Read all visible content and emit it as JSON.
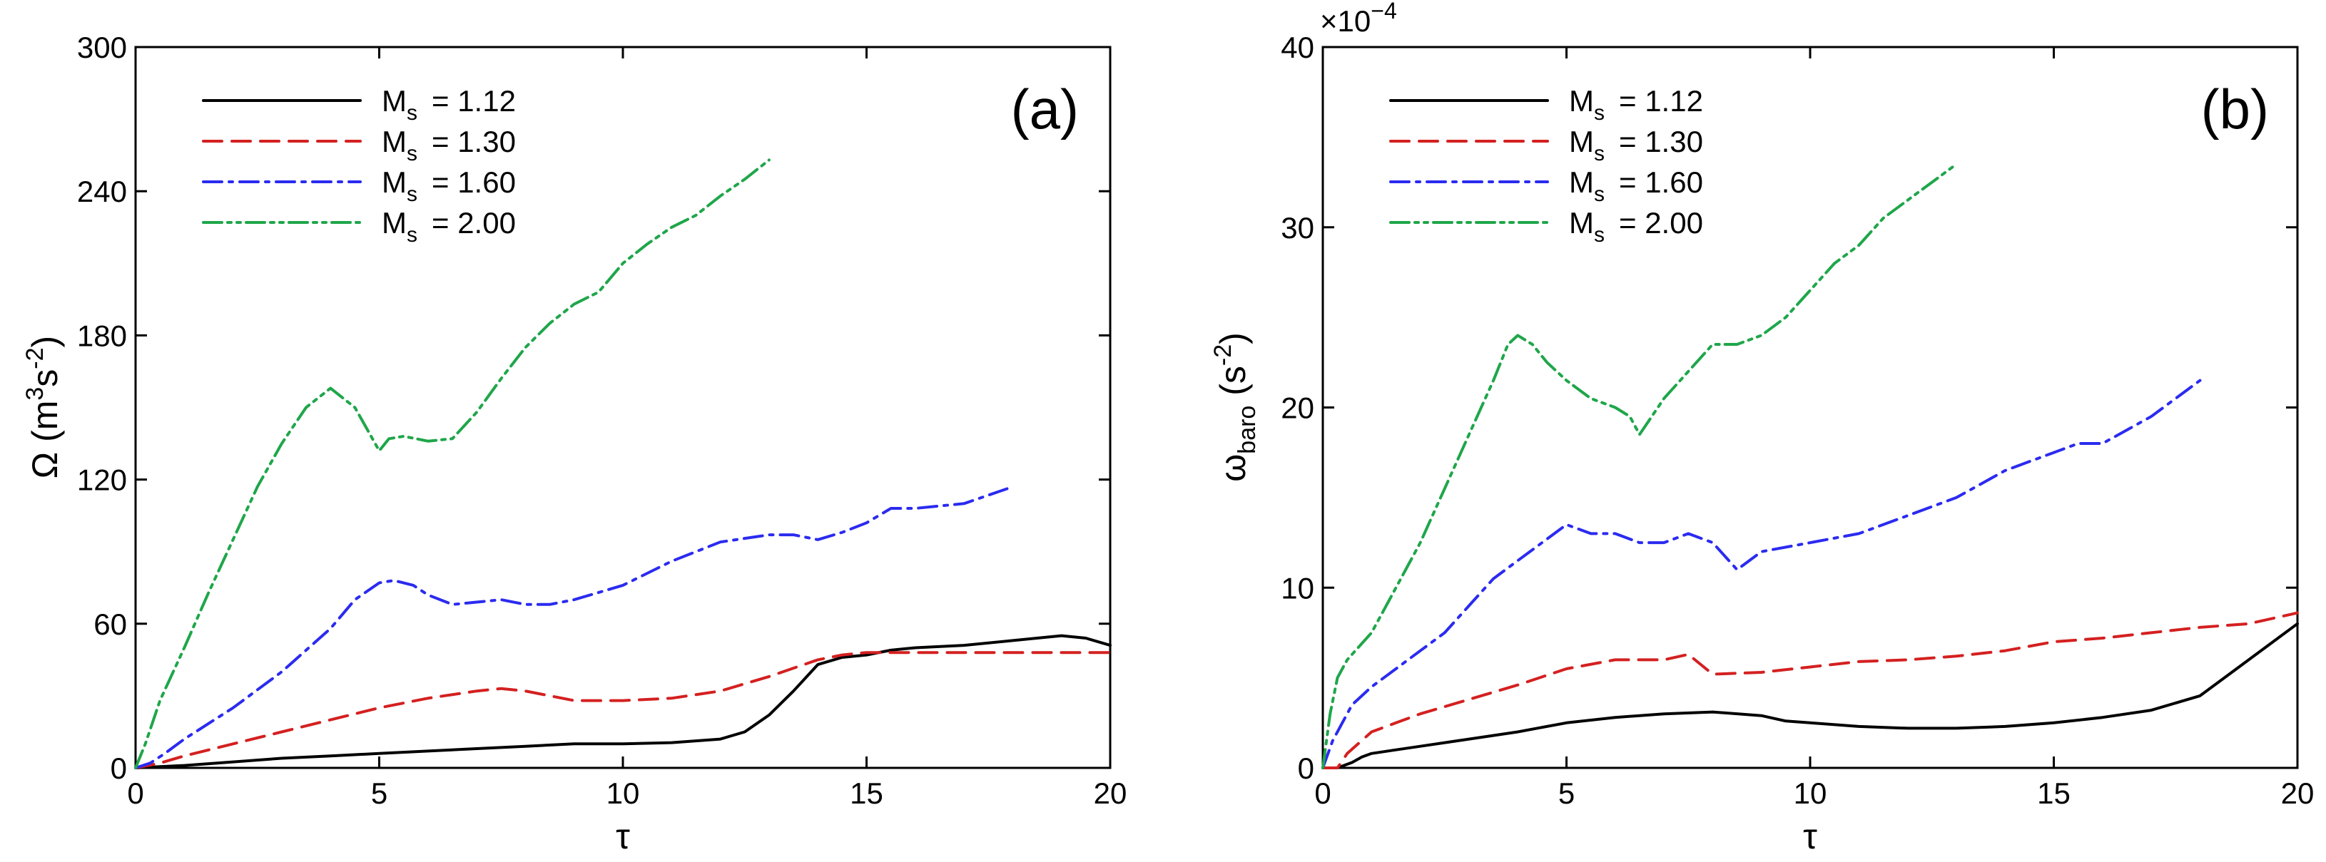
{
  "chart_data": [
    {
      "type": "line",
      "panel_label": "(a)",
      "xlabel": "τ",
      "ylabel": "Ω (m³s⁻²)",
      "ylabel_parts": {
        "main": "Ω (m",
        "sup1": "3",
        "mid": "s",
        "sup2": "-2",
        "end": ")"
      },
      "xlim": [
        0,
        20
      ],
      "ylim": [
        0,
        300
      ],
      "xticks": [
        0,
        5,
        10,
        15,
        20
      ],
      "yticks": [
        0,
        60,
        120,
        180,
        240,
        300
      ],
      "legend_position": "top-left",
      "series": [
        {
          "name": "Ms = 1.12",
          "label_main": "M",
          "label_sub": "s",
          "label_value": "= 1.12",
          "color": "#000000",
          "style": "solid",
          "x": [
            0,
            0.5,
            1,
            2,
            3,
            4,
            5,
            6,
            7,
            8,
            9,
            10,
            11,
            12,
            12.5,
            13,
            13.5,
            14,
            14.5,
            15,
            15.5,
            16,
            17,
            18,
            18.5,
            19,
            19.5,
            20
          ],
          "y": [
            0,
            0.5,
            1,
            2.5,
            4,
            5,
            6,
            7,
            8,
            9,
            10,
            10,
            10.5,
            12,
            15,
            22,
            32,
            43,
            46,
            47,
            49,
            50,
            51,
            53,
            54,
            55,
            54,
            51
          ]
        },
        {
          "name": "Ms = 1.30",
          "label_main": "M",
          "label_sub": "s",
          "label_value": "= 1.30",
          "color": "#d42020",
          "style": "dashed",
          "x": [
            0,
            0.5,
            1,
            2,
            3,
            4,
            5,
            6,
            7,
            7.5,
            8,
            9,
            10,
            11,
            12,
            13,
            14,
            14.5,
            15,
            16,
            17,
            18,
            19,
            20
          ],
          "y": [
            0,
            2,
            5,
            10,
            15,
            20,
            25,
            29,
            32,
            33,
            32,
            28,
            28,
            29,
            32,
            38,
            45,
            47,
            48,
            48,
            48,
            48,
            48,
            48
          ]
        },
        {
          "name": "Ms = 1.60",
          "label_main": "M",
          "label_sub": "s",
          "label_value": "= 1.60",
          "color": "#2b2bf0",
          "style": "dashdot",
          "x": [
            0,
            0.3,
            0.6,
            1,
            2,
            3,
            4,
            4.5,
            5,
            5.3,
            5.7,
            6,
            6.5,
            7,
            7.5,
            8,
            8.5,
            9,
            10,
            11,
            12,
            13,
            13.5,
            14,
            14.5,
            15,
            15.5,
            16,
            17,
            18
          ],
          "y": [
            0,
            2,
            6,
            12,
            25,
            40,
            58,
            70,
            77,
            78,
            76,
            72,
            68,
            69,
            70,
            68,
            68,
            70,
            76,
            86,
            94,
            97,
            97,
            95,
            98,
            102,
            108,
            108,
            110,
            117
          ]
        },
        {
          "name": "Ms = 2.00",
          "label_main": "M",
          "label_sub": "s",
          "label_value": "= 2.00",
          "color": "#1fa64a",
          "style": "dashdotdot",
          "x": [
            0,
            0.2,
            0.5,
            1,
            1.5,
            2,
            2.5,
            3,
            3.5,
            4,
            4.5,
            5,
            5.2,
            5.5,
            6,
            6.5,
            7,
            7.5,
            8,
            8.5,
            9,
            9.5,
            10,
            10.5,
            11,
            11.5,
            12,
            12.5,
            13
          ],
          "y": [
            0,
            10,
            28,
            50,
            73,
            95,
            117,
            135,
            150,
            158,
            150,
            132,
            137,
            138,
            136,
            137,
            148,
            162,
            175,
            185,
            193,
            198,
            210,
            218,
            225,
            230,
            238,
            245,
            253
          ]
        }
      ]
    },
    {
      "type": "line",
      "panel_label": "(b)",
      "xlabel": "τ",
      "ylabel": "ωbaro (s⁻²)",
      "ylabel_parts": {
        "main": "ω",
        "sub": "baro",
        "mid": " (s",
        "sup": "-2",
        "end": ")"
      },
      "y_multiplier": "×10⁻⁴",
      "y_multiplier_parts": {
        "base": "×10",
        "exp": "−4"
      },
      "xlim": [
        0,
        20
      ],
      "ylim": [
        0,
        40
      ],
      "xticks": [
        0,
        5,
        10,
        15,
        20
      ],
      "yticks": [
        0,
        10,
        20,
        30,
        40
      ],
      "legend_position": "top-left",
      "series": [
        {
          "name": "Ms = 1.12",
          "label_main": "M",
          "label_sub": "s",
          "label_value": "= 1.12",
          "color": "#000000",
          "style": "solid",
          "x": [
            0,
            0.3,
            0.6,
            0.8,
            1,
            1.5,
            2,
            3,
            4,
            5,
            6,
            7,
            8,
            9,
            9.5,
            10,
            11,
            12,
            13,
            14,
            15,
            16,
            17,
            18,
            18.5,
            19,
            19.5,
            20
          ],
          "y": [
            0,
            0,
            0.3,
            0.6,
            0.8,
            1,
            1.2,
            1.6,
            2,
            2.5,
            2.8,
            3,
            3.1,
            2.9,
            2.6,
            2.5,
            2.3,
            2.2,
            2.2,
            2.3,
            2.5,
            2.8,
            3.2,
            4,
            5,
            6,
            7,
            8
          ]
        },
        {
          "name": "Ms = 1.30",
          "label_main": "M",
          "label_sub": "s",
          "label_value": "= 1.30",
          "color": "#d42020",
          "style": "dashed",
          "x": [
            0,
            0.3,
            0.5,
            1,
            1.5,
            2,
            3,
            4,
            5,
            6,
            7,
            7.5,
            8,
            9,
            10,
            11,
            12,
            13,
            14,
            15,
            16,
            17,
            18,
            19,
            20
          ],
          "y": [
            0,
            0,
            0.8,
            2,
            2.5,
            3,
            3.8,
            4.6,
            5.5,
            6,
            6,
            6.3,
            5.2,
            5.3,
            5.6,
            5.9,
            6,
            6.2,
            6.5,
            7,
            7.2,
            7.5,
            7.8,
            8,
            8.6
          ]
        },
        {
          "name": "Ms = 1.60",
          "label_main": "M",
          "label_sub": "s",
          "label_value": "= 1.60",
          "color": "#2b2bf0",
          "style": "dashdot",
          "x": [
            0,
            0.2,
            0.4,
            0.6,
            1,
            1.5,
            2,
            2.5,
            3,
            3.5,
            4,
            4.5,
            5,
            5.5,
            6,
            6.5,
            7,
            7.5,
            8,
            8.5,
            9,
            10,
            11,
            12,
            13,
            14,
            15,
            15.5,
            16,
            17,
            18
          ],
          "y": [
            0,
            1.5,
            2.5,
            3.5,
            4.5,
            5.5,
            6.5,
            7.5,
            9,
            10.5,
            11.5,
            12.5,
            13.5,
            13,
            13,
            12.5,
            12.5,
            13,
            12.5,
            11,
            12,
            12.5,
            13,
            14,
            15,
            16.5,
            17.5,
            18,
            18,
            19.5,
            21.5
          ]
        },
        {
          "name": "Ms = 2.00",
          "label_main": "M",
          "label_sub": "s",
          "label_value": "= 2.00",
          "color": "#1fa64a",
          "style": "dashdotdot",
          "x": [
            0,
            0.15,
            0.3,
            0.5,
            1,
            1.5,
            2,
            2.5,
            3,
            3.5,
            3.8,
            4,
            4.3,
            4.6,
            5,
            5.5,
            6,
            6.3,
            6.5,
            7,
            7.5,
            8,
            8.5,
            9,
            9.5,
            10,
            10.5,
            11,
            11.5,
            12,
            12.5,
            13
          ],
          "y": [
            0,
            3,
            5,
            6,
            7.5,
            10,
            12.5,
            15.5,
            18.5,
            21.5,
            23.5,
            24,
            23.5,
            22.5,
            21.5,
            20.5,
            20,
            19.5,
            18.5,
            20.5,
            22,
            23.5,
            23.5,
            24,
            25,
            26.5,
            28,
            29,
            30.5,
            31.5,
            32.5,
            33.5
          ]
        }
      ]
    }
  ]
}
